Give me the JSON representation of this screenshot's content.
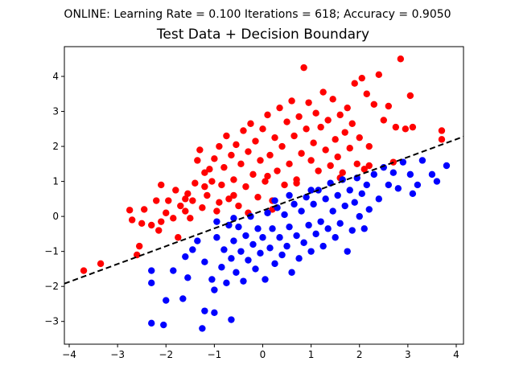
{
  "chart_data": {
    "type": "scatter",
    "suptitle": "ONLINE: Learning Rate = 0.100 Iterations = 618; Accuracy = 0.9050",
    "title": "Test Data + Decision Boundary",
    "xlabel": "",
    "ylabel": "",
    "xlim": [
      -4.1,
      4.15
    ],
    "ylim": [
      -3.65,
      4.85
    ],
    "grid": false,
    "x_ticks": [
      -4,
      -3,
      -2,
      -1,
      0,
      1,
      2,
      3,
      4
    ],
    "y_ticks": [
      -3,
      -2,
      -1,
      0,
      1,
      2,
      3,
      4
    ],
    "colors": {
      "class_red": "#ff0000",
      "class_blue": "#0000ff",
      "boundary": "#000000"
    },
    "boundary": {
      "style": "dashed",
      "x": [
        -4.1,
        4.15
      ],
      "y": [
        -1.92,
        2.28
      ]
    },
    "series": [
      {
        "color": "#ff0000",
        "points": [
          [
            -3.7,
            -1.55
          ],
          [
            -3.35,
            -1.35
          ],
          [
            -2.75,
            0.18
          ],
          [
            -2.7,
            -0.1
          ],
          [
            -2.55,
            -0.85
          ],
          [
            -2.6,
            -1.1
          ],
          [
            -2.5,
            -0.2
          ],
          [
            -2.45,
            0.2
          ],
          [
            -2.3,
            -0.25
          ],
          [
            -2.2,
            0.45
          ],
          [
            -2.15,
            -0.4
          ],
          [
            -2.1,
            -0.15
          ],
          [
            -2.0,
            0.1
          ],
          [
            -1.95,
            0.45
          ],
          [
            -1.85,
            -0.05
          ],
          [
            -1.8,
            0.75
          ],
          [
            -1.75,
            -0.6
          ],
          [
            -1.7,
            0.3
          ],
          [
            -1.6,
            0.15
          ],
          [
            -1.55,
            0.65
          ],
          [
            -1.5,
            -0.05
          ],
          [
            -1.45,
            0.45
          ],
          [
            -1.4,
            0.95
          ],
          [
            -1.35,
            1.6
          ],
          [
            -1.3,
            1.9
          ],
          [
            -1.25,
            0.25
          ],
          [
            -1.2,
            1.25
          ],
          [
            -1.15,
            0.6
          ],
          [
            -1.1,
            1.35
          ],
          [
            -1.05,
            1.0
          ],
          [
            -1.0,
            1.65
          ],
          [
            -0.95,
            0.15
          ],
          [
            -0.9,
            2.0
          ],
          [
            -0.85,
            0.9
          ],
          [
            -0.8,
            1.4
          ],
          [
            -0.75,
            2.3
          ],
          [
            -0.7,
            0.5
          ],
          [
            -0.65,
            1.75
          ],
          [
            -0.6,
            1.05
          ],
          [
            -0.55,
            2.05
          ],
          [
            -0.5,
            0.3
          ],
          [
            -0.45,
            1.5
          ],
          [
            -0.4,
            2.45
          ],
          [
            -0.35,
            0.85
          ],
          [
            -0.3,
            1.85
          ],
          [
            -0.25,
            2.65
          ],
          [
            -0.2,
            1.2
          ],
          [
            -0.15,
            2.15
          ],
          [
            -0.1,
            0.55
          ],
          [
            -0.05,
            1.6
          ],
          [
            0.0,
            2.5
          ],
          [
            0.05,
            1.0
          ],
          [
            0.1,
            2.9
          ],
          [
            0.15,
            1.75
          ],
          [
            0.2,
            0.45
          ],
          [
            0.25,
            2.25
          ],
          [
            0.3,
            1.3
          ],
          [
            0.35,
            3.1
          ],
          [
            0.4,
            2.0
          ],
          [
            0.45,
            0.9
          ],
          [
            0.5,
            2.7
          ],
          [
            0.55,
            1.5
          ],
          [
            0.6,
            3.3
          ],
          [
            0.65,
            2.3
          ],
          [
            0.7,
            1.05
          ],
          [
            0.75,
            2.85
          ],
          [
            0.8,
            1.8
          ],
          [
            0.85,
            4.25
          ],
          [
            0.9,
            2.5
          ],
          [
            0.95,
            3.25
          ],
          [
            1.0,
            1.6
          ],
          [
            1.05,
            2.1
          ],
          [
            1.1,
            2.95
          ],
          [
            1.15,
            1.3
          ],
          [
            1.2,
            2.55
          ],
          [
            1.25,
            3.55
          ],
          [
            1.3,
            1.9
          ],
          [
            1.35,
            2.75
          ],
          [
            1.4,
            1.45
          ],
          [
            1.45,
            3.35
          ],
          [
            1.5,
            2.2
          ],
          [
            1.55,
            1.7
          ],
          [
            1.6,
            2.9
          ],
          [
            1.65,
            1.25
          ],
          [
            1.7,
            2.4
          ],
          [
            1.75,
            3.1
          ],
          [
            1.8,
            1.95
          ],
          [
            1.85,
            2.65
          ],
          [
            1.9,
            3.8
          ],
          [
            1.95,
            1.5
          ],
          [
            2.0,
            2.25
          ],
          [
            2.05,
            3.95
          ],
          [
            2.1,
            1.35
          ],
          [
            2.15,
            3.5
          ],
          [
            2.2,
            2.0
          ],
          [
            2.3,
            3.2
          ],
          [
            2.4,
            4.05
          ],
          [
            2.5,
            2.75
          ],
          [
            2.6,
            3.15
          ],
          [
            2.7,
            1.55
          ],
          [
            2.75,
            2.55
          ],
          [
            2.85,
            4.5
          ],
          [
            2.95,
            2.5
          ],
          [
            3.05,
            3.45
          ],
          [
            3.1,
            2.55
          ],
          [
            3.7,
            2.45
          ],
          [
            3.7,
            2.2
          ],
          [
            -2.1,
            0.9
          ],
          [
            -1.6,
            0.5
          ],
          [
            -0.9,
            0.4
          ],
          [
            -0.3,
            0.1
          ],
          [
            0.2,
            0.2
          ],
          [
            -1.2,
            0.85
          ],
          [
            -0.6,
            0.6
          ],
          [
            0.1,
            1.15
          ],
          [
            0.7,
            0.95
          ],
          [
            1.6,
            1.1
          ],
          [
            2.2,
            1.45
          ]
        ]
      },
      {
        "color": "#0000ff",
        "points": [
          [
            -2.3,
            -3.05
          ],
          [
            -2.05,
            -3.1
          ],
          [
            -2.0,
            -2.4
          ],
          [
            -1.65,
            -2.35
          ],
          [
            -1.55,
            -1.75
          ],
          [
            -1.25,
            -3.2
          ],
          [
            -1.2,
            -2.7
          ],
          [
            -1.0,
            -2.75
          ],
          [
            -0.65,
            -2.95
          ],
          [
            -2.3,
            -1.55
          ],
          [
            -2.3,
            -1.9
          ],
          [
            -1.85,
            -1.55
          ],
          [
            -1.6,
            -1.15
          ],
          [
            -1.45,
            -0.95
          ],
          [
            -1.35,
            -0.7
          ],
          [
            -1.2,
            -1.3
          ],
          [
            -1.05,
            -1.8
          ],
          [
            -1.0,
            -2.1
          ],
          [
            -0.95,
            -0.6
          ],
          [
            -0.85,
            -1.45
          ],
          [
            -0.8,
            -0.95
          ],
          [
            -0.75,
            -1.9
          ],
          [
            -0.7,
            -0.25
          ],
          [
            -0.65,
            -1.2
          ],
          [
            -0.6,
            -0.7
          ],
          [
            -0.55,
            -1.6
          ],
          [
            -0.5,
            -0.3
          ],
          [
            -0.45,
            -1.0
          ],
          [
            -0.4,
            -1.85
          ],
          [
            -0.35,
            -0.55
          ],
          [
            -0.3,
            -1.25
          ],
          [
            -0.25,
            0.0
          ],
          [
            -0.2,
            -0.8
          ],
          [
            -0.15,
            -1.5
          ],
          [
            -0.1,
            -0.35
          ],
          [
            -0.05,
            -1.05
          ],
          [
            0.0,
            -0.6
          ],
          [
            0.05,
            -1.8
          ],
          [
            0.1,
            0.1
          ],
          [
            0.15,
            -0.9
          ],
          [
            0.2,
            -0.35
          ],
          [
            0.25,
            -1.35
          ],
          [
            0.3,
            0.25
          ],
          [
            0.35,
            -0.6
          ],
          [
            0.4,
            -1.1
          ],
          [
            0.45,
            0.05
          ],
          [
            0.5,
            -0.85
          ],
          [
            0.55,
            -0.3
          ],
          [
            0.6,
            -1.6
          ],
          [
            0.65,
            0.35
          ],
          [
            0.7,
            -0.55
          ],
          [
            0.75,
            -1.2
          ],
          [
            0.8,
            0.15
          ],
          [
            0.85,
            -0.75
          ],
          [
            0.9,
            0.55
          ],
          [
            0.95,
            -0.25
          ],
          [
            1.0,
            -1.0
          ],
          [
            1.05,
            0.35
          ],
          [
            1.1,
            -0.5
          ],
          [
            1.15,
            0.75
          ],
          [
            1.2,
            -0.15
          ],
          [
            1.25,
            -0.85
          ],
          [
            1.3,
            0.5
          ],
          [
            1.35,
            -0.35
          ],
          [
            1.4,
            0.95
          ],
          [
            1.45,
            0.15
          ],
          [
            1.5,
            -0.6
          ],
          [
            1.55,
            0.6
          ],
          [
            1.6,
            -0.2
          ],
          [
            1.65,
            1.05
          ],
          [
            1.7,
            0.3
          ],
          [
            1.75,
            -1.0
          ],
          [
            1.8,
            0.75
          ],
          [
            1.85,
            -0.4
          ],
          [
            1.9,
            0.4
          ],
          [
            1.95,
            1.1
          ],
          [
            2.0,
            0.0
          ],
          [
            2.05,
            0.65
          ],
          [
            2.1,
            -0.35
          ],
          [
            2.15,
            0.9
          ],
          [
            2.2,
            0.2
          ],
          [
            2.3,
            1.2
          ],
          [
            2.4,
            0.5
          ],
          [
            2.5,
            1.4
          ],
          [
            2.6,
            0.9
          ],
          [
            2.7,
            1.25
          ],
          [
            2.8,
            0.8
          ],
          [
            2.9,
            1.55
          ],
          [
            3.05,
            1.2
          ],
          [
            3.1,
            0.65
          ],
          [
            3.2,
            0.9
          ],
          [
            3.3,
            1.6
          ],
          [
            3.5,
            1.2
          ],
          [
            3.6,
            1.0
          ],
          [
            3.8,
            1.45
          ],
          [
            -0.95,
            -0.15
          ],
          [
            -0.6,
            -0.05
          ],
          [
            0.25,
            0.45
          ],
          [
            0.55,
            0.6
          ],
          [
            1.0,
            0.75
          ]
        ]
      }
    ]
  }
}
